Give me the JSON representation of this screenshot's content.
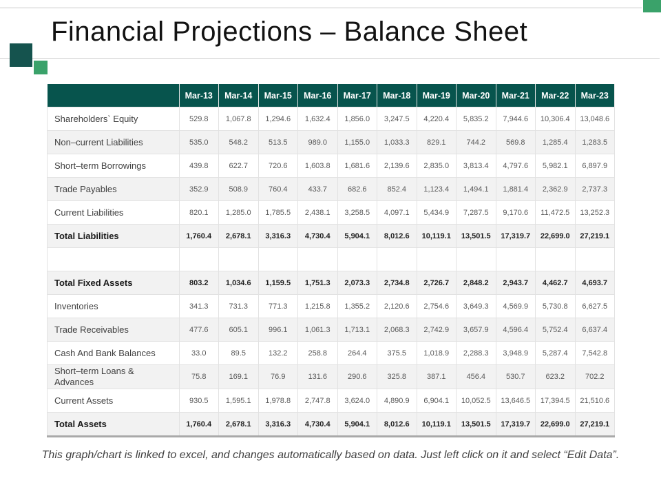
{
  "slide": {
    "title": "Financial Projections – Balance Sheet",
    "footer": "This graph/chart is linked to excel, and changes automatically based on data. Just left click on it and select “Edit Data”.",
    "accent_colors": {
      "header_teal": "#07544d",
      "dark_square_teal": "#15534e",
      "green_square": "#3aa26a",
      "row_stripe": "#f2f2f2",
      "table_bottom_border": "#a9a9a9"
    }
  },
  "table": {
    "columns": [
      "Mar-13",
      "Mar-14",
      "Mar-15",
      "Mar-16",
      "Mar-17",
      "Mar-18",
      "Mar-19",
      "Mar-20",
      "Mar-21",
      "Mar-22",
      "Mar-23"
    ],
    "rows": [
      {
        "label": "Shareholders` Equity",
        "emphasis": false,
        "values": [
          "529.8",
          "1,067.8",
          "1,294.6",
          "1,632.4",
          "1,856.0",
          "3,247.5",
          "4,220.4",
          "5,835.2",
          "7,944.6",
          "10,306.4",
          "13,048.6"
        ]
      },
      {
        "label": "Non–current Liabilities",
        "emphasis": false,
        "values": [
          "535.0",
          "548.2",
          "513.5",
          "989.0",
          "1,155.0",
          "1,033.3",
          "829.1",
          "744.2",
          "569.8",
          "1,285.4",
          "1,283.5"
        ]
      },
      {
        "label": "Short–term Borrowings",
        "emphasis": false,
        "values": [
          "439.8",
          "622.7",
          "720.6",
          "1,603.8",
          "1,681.6",
          "2,139.6",
          "2,835.0",
          "3,813.4",
          "4,797.6",
          "5,982.1",
          "6,897.9"
        ]
      },
      {
        "label": "Trade Payables",
        "emphasis": false,
        "values": [
          "352.9",
          "508.9",
          "760.4",
          "433.7",
          "682.6",
          "852.4",
          "1,123.4",
          "1,494.1",
          "1,881.4",
          "2,362.9",
          "2,737.3"
        ]
      },
      {
        "label": "Current Liabilities",
        "emphasis": false,
        "values": [
          "820.1",
          "1,285.0",
          "1,785.5",
          "2,438.1",
          "3,258.5",
          "4,097.1",
          "5,434.9",
          "7,287.5",
          "9,170.6",
          "11,472.5",
          "13,252.3"
        ]
      },
      {
        "label": "Total Liabilities",
        "emphasis": true,
        "values": [
          "1,760.4",
          "2,678.1",
          "3,316.3",
          "4,730.4",
          "5,904.1",
          "8,012.6",
          "10,119.1",
          "13,501.5",
          "17,319.7",
          "22,699.0",
          "27,219.1"
        ]
      },
      {
        "label": "",
        "emphasis": false,
        "values": [
          "",
          "",
          "",
          "",
          "",
          "",
          "",
          "",
          "",
          "",
          ""
        ]
      },
      {
        "label": "Total Fixed Assets",
        "emphasis": true,
        "values": [
          "803.2",
          "1,034.6",
          "1,159.5",
          "1,751.3",
          "2,073.3",
          "2,734.8",
          "2,726.7",
          "2,848.2",
          "2,943.7",
          "4,462.7",
          "4,693.7"
        ]
      },
      {
        "label": "Inventories",
        "emphasis": false,
        "values": [
          "341.3",
          "731.3",
          "771.3",
          "1,215.8",
          "1,355.2",
          "2,120.6",
          "2,754.6",
          "3,649.3",
          "4,569.9",
          "5,730.8",
          "6,627.5"
        ]
      },
      {
        "label": "Trade Receivables",
        "emphasis": false,
        "values": [
          "477.6",
          "605.1",
          "996.1",
          "1,061.3",
          "1,713.1",
          "2,068.3",
          "2,742.9",
          "3,657.9",
          "4,596.4",
          "5,752.4",
          "6,637.4"
        ]
      },
      {
        "label": "Cash And Bank Balances",
        "emphasis": false,
        "values": [
          "33.0",
          "89.5",
          "132.2",
          "258.8",
          "264.4",
          "375.5",
          "1,018.9",
          "2,288.3",
          "3,948.9",
          "5,287.4",
          "7,542.8"
        ]
      },
      {
        "label": "Short–term Loans &\nAdvances",
        "emphasis": false,
        "values": [
          "75.8",
          "169.1",
          "76.9",
          "131.6",
          "290.6",
          "325.8",
          "387.1",
          "456.4",
          "530.7",
          "623.2",
          "702.2"
        ]
      },
      {
        "label": "Current Assets",
        "emphasis": false,
        "values": [
          "930.5",
          "1,595.1",
          "1,978.8",
          "2,747.8",
          "3,624.0",
          "4,890.9",
          "6,904.1",
          "10,052.5",
          "13,646.5",
          "17,394.5",
          "21,510.6"
        ]
      },
      {
        "label": "Total Assets",
        "emphasis": true,
        "values": [
          "1,760.4",
          "2,678.1",
          "3,316.3",
          "4,730.4",
          "5,904.1",
          "8,012.6",
          "10,119.1",
          "13,501.5",
          "17,319.7",
          "22,699.0",
          "27,219.1"
        ]
      }
    ]
  }
}
